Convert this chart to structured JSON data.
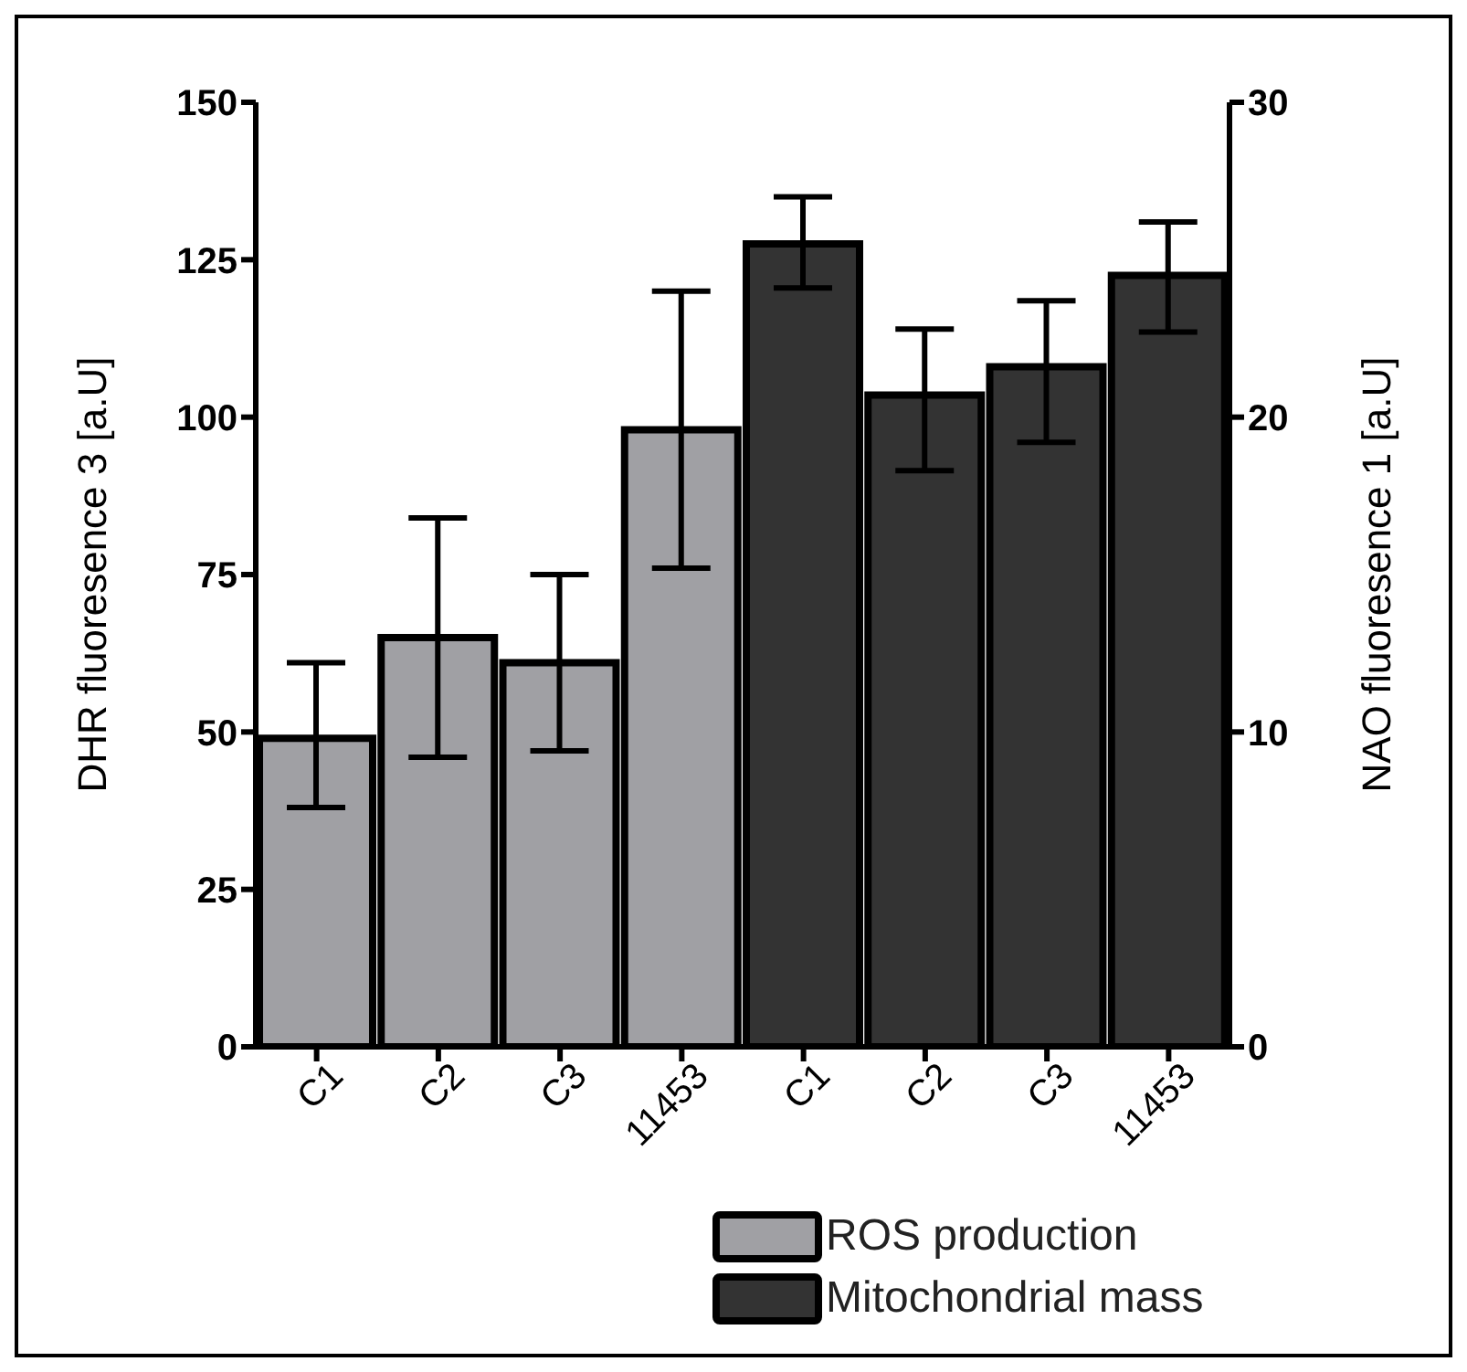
{
  "chart_data": {
    "type": "bar",
    "categories": [
      "C1",
      "C2",
      "C3",
      "11453",
      "C1",
      "C2",
      "C3",
      "11453"
    ],
    "series": [
      {
        "name": "ROS production",
        "color": "#a0a0a4",
        "values": [
          49,
          65,
          61,
          98,
          null,
          null,
          null,
          null
        ],
        "errors": [
          [
            38,
            61
          ],
          [
            46,
            84
          ],
          [
            47,
            75
          ],
          [
            76,
            120
          ],
          null,
          null,
          null,
          null
        ]
      },
      {
        "name": "Mitochondrial mass",
        "color": "#333333",
        "axis": "y2",
        "values": [
          null,
          null,
          null,
          null,
          25.5,
          20.7,
          21.6,
          24.5
        ],
        "errors": [
          null,
          null,
          null,
          null,
          [
            24.1,
            27.0
          ],
          [
            18.3,
            22.8
          ],
          [
            19.2,
            23.7
          ],
          [
            22.7,
            26.2
          ]
        ]
      }
    ],
    "ylabel": "DHR fluoresence 3 [a.U]",
    "y2label": "NAO fluoresence 1 [a.U]",
    "ylim": [
      0,
      150
    ],
    "yticks": [
      0,
      25,
      50,
      75,
      100,
      125,
      150
    ],
    "y2lim": [
      0,
      30
    ],
    "y2ticks": [
      0,
      10,
      20,
      30
    ],
    "grid": false,
    "legend": "bottom"
  }
}
